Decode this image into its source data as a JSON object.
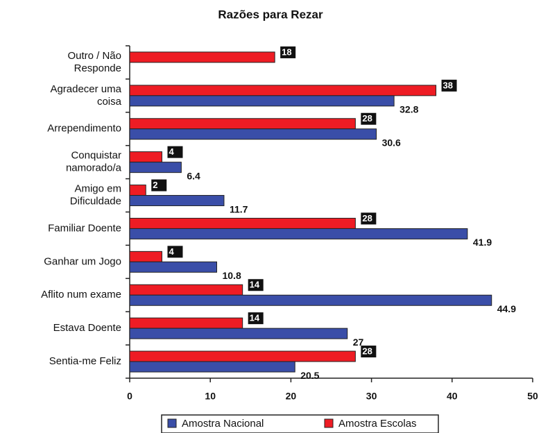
{
  "chart_data": {
    "type": "bar",
    "orientation": "horizontal",
    "title": "Razões para Rezar",
    "categories": [
      "Outro / Não\nResponde",
      "Agradecer uma\ncoisa",
      "Arrependimento",
      "Conquistar\nnamorado/a",
      "Amigo em\nDificuldade",
      "Familiar Doente",
      "Ganhar um Jogo",
      "Aflito num exame",
      "Estava Doente",
      "Sentia-me Feliz"
    ],
    "series": [
      {
        "name": "Amostra Escolas",
        "color": "#ee1c24",
        "values": [
          18,
          38,
          28,
          4,
          2,
          28,
          4,
          14,
          14,
          28
        ]
      },
      {
        "name": "Amostra Nacional",
        "color": "#3a4ea8",
        "values": [
          null,
          32.8,
          30.6,
          6.4,
          11.7,
          41.9,
          10.8,
          44.9,
          27,
          20.5
        ]
      }
    ],
    "legend_order": [
      1,
      0
    ],
    "xlim": [
      0,
      50
    ],
    "xticks": [
      0,
      10,
      20,
      30,
      40,
      50
    ],
    "grid": false
  }
}
